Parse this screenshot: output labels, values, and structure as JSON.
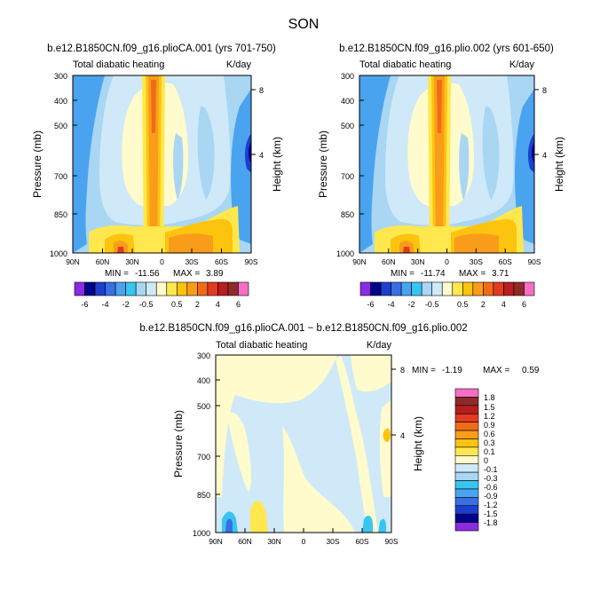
{
  "figure_title": "SON",
  "colors": {
    "purple": "#8a2be2",
    "navy": "#00008b",
    "dblue": "#1c3fcf",
    "blue": "#3a6fe3",
    "mblue": "#4aa3ef",
    "cyan": "#38c5f2",
    "lblue": "#a9d6f3",
    "vlblue": "#cfe9f8",
    "pyellow": "#fffbcc",
    "yellow": "#ffe84d",
    "gold": "#fcc30f",
    "orange": "#f99c1a",
    "dorange": "#ef6b1a",
    "red": "#e33a22",
    "dred": "#b51f1f",
    "maroon": "#8f2a2a",
    "pink": "#f76fc3"
  },
  "chart_data": [
    {
      "type": "heatmap",
      "name": "panel-left",
      "title": "b.e12.B1850CN.f09_g16.plioCA.001 (yrs 701-750)",
      "subtitle_left": "Total diabatic heating",
      "subtitle_right": "K/day",
      "ylabel": "Pressure (mb)",
      "ylabel_right": "Height (km)",
      "x_ticks": [
        "90N",
        "60N",
        "30N",
        "0",
        "30S",
        "60S",
        "90S"
      ],
      "y_ticks": [
        "300",
        "400",
        "500",
        "700",
        "850",
        "1000"
      ],
      "right_ticks": [
        "8",
        "4"
      ],
      "xlim": [
        90,
        -90
      ],
      "ylim": [
        1000,
        300
      ],
      "stats": {
        "min_label": "MIN =",
        "min": "-11.56",
        "max_label": "MAX =",
        "max": "3.89"
      },
      "colorbar_labels": [
        "-6",
        "-4",
        "-2",
        "-0.5",
        "0.5",
        "2",
        "4",
        "6"
      ],
      "regions": [
        {
          "lat": 80,
          "p": 400,
          "level": "mblue"
        },
        {
          "lat": 40,
          "p": 350,
          "level": "lblue"
        },
        {
          "lat": 25,
          "p": 500,
          "level": "vlblue"
        },
        {
          "lat": 5,
          "p": 500,
          "level": "orange"
        },
        {
          "lat": -15,
          "p": 500,
          "level": "pyellow"
        },
        {
          "lat": -40,
          "p": 550,
          "level": "lblue"
        },
        {
          "lat": -80,
          "p": 600,
          "level": "dblue"
        },
        {
          "lat": -10,
          "p": 960,
          "level": "orange"
        }
      ]
    },
    {
      "type": "heatmap",
      "name": "panel-right",
      "title": "b.e12.B1850CN.f09_g16.plio.002 (yrs 601-650)",
      "subtitle_left": "Total diabatic heating",
      "subtitle_right": "K/day",
      "ylabel": "Pressure (mb)",
      "ylabel_right": "Height (km)",
      "x_ticks": [
        "90N",
        "60N",
        "30N",
        "0",
        "30S",
        "60S",
        "90S"
      ],
      "y_ticks": [
        "300",
        "400",
        "500",
        "700",
        "850",
        "1000"
      ],
      "right_ticks": [
        "8",
        "4"
      ],
      "xlim": [
        90,
        -90
      ],
      "ylim": [
        1000,
        300
      ],
      "stats": {
        "min_label": "MIN =",
        "min": "-11.74",
        "max_label": "MAX =",
        "max": "3.71"
      },
      "colorbar_labels": [
        "-6",
        "-4",
        "-2",
        "-0.5",
        "0.5",
        "2",
        "4",
        "6"
      ],
      "regions": [
        {
          "lat": 80,
          "p": 400,
          "level": "mblue"
        },
        {
          "lat": 40,
          "p": 350,
          "level": "lblue"
        },
        {
          "lat": 25,
          "p": 500,
          "level": "vlblue"
        },
        {
          "lat": 5,
          "p": 500,
          "level": "orange"
        },
        {
          "lat": -15,
          "p": 500,
          "level": "pyellow"
        },
        {
          "lat": -40,
          "p": 550,
          "level": "lblue"
        },
        {
          "lat": -80,
          "p": 600,
          "level": "dblue"
        },
        {
          "lat": -10,
          "p": 960,
          "level": "orange"
        }
      ]
    },
    {
      "type": "heatmap",
      "name": "panel-diff",
      "title": "b.e12.B1850CN.f09_g16.plioCA.001 − b.e12.B1850CN.f09_g16.plio.002",
      "subtitle_left": "Total diabatic heating",
      "subtitle_right": "K/day",
      "ylabel": "Pressure (mb)",
      "ylabel_right": "Height (km)",
      "x_ticks": [
        "90N",
        "60N",
        "30N",
        "0",
        "30S",
        "60S",
        "90S"
      ],
      "y_ticks": [
        "300",
        "400",
        "500",
        "700",
        "850",
        "1000"
      ],
      "right_ticks": [
        "8",
        "4"
      ],
      "xlim": [
        90,
        -90
      ],
      "ylim": [
        1000,
        300
      ],
      "stats": {
        "min_label": "MIN =",
        "min": "-1.19",
        "max_label": "MAX =",
        "max": "0.59"
      },
      "colorbar_labels": [
        "1.8",
        "1.5",
        "1.2",
        "0.9",
        "0.6",
        "0.3",
        "0.1",
        "0",
        "-0.1",
        "-0.3",
        "-0.6",
        "-0.9",
        "-1.2",
        "-1.5",
        "-1.8"
      ],
      "regions": [
        {
          "lat": 60,
          "p": 550,
          "level": "pyellow"
        },
        {
          "lat": 10,
          "p": 600,
          "level": "vlblue"
        },
        {
          "lat": -30,
          "p": 500,
          "level": "pyellow"
        },
        {
          "lat": 50,
          "p": 920,
          "level": "gold"
        }
      ]
    }
  ]
}
